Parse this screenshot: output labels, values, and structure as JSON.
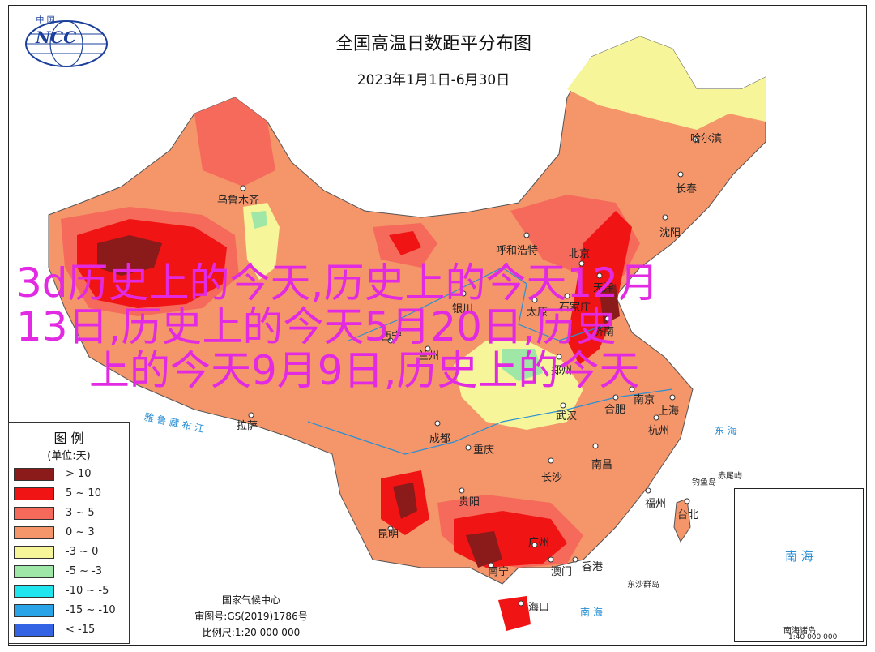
{
  "header": {
    "title": "全国高温日数距平分布图",
    "date_range": "2023年1月1日-6月30日"
  },
  "logo": {
    "top_text": "中 国",
    "text": "NCC"
  },
  "cities": [
    {
      "label": "乌鲁木齐"
    },
    {
      "label": "哈尔滨"
    },
    {
      "label": "长春"
    },
    {
      "label": "沈阳"
    },
    {
      "label": "呼和浩特"
    },
    {
      "label": "北京"
    },
    {
      "label": "天津"
    },
    {
      "label": "银川"
    },
    {
      "label": "太原"
    },
    {
      "label": "石家庄"
    },
    {
      "label": "济南"
    },
    {
      "label": "兰州"
    },
    {
      "label": "西宁"
    },
    {
      "label": "郑州"
    },
    {
      "label": "南京"
    },
    {
      "label": "合肥"
    },
    {
      "label": "上海"
    },
    {
      "label": "武汉"
    },
    {
      "label": "杭州"
    },
    {
      "label": "拉萨"
    },
    {
      "label": "成都"
    },
    {
      "label": "重庆"
    },
    {
      "label": "长沙"
    },
    {
      "label": "南昌"
    },
    {
      "label": "贵阳"
    },
    {
      "label": "福州"
    },
    {
      "label": "台北"
    },
    {
      "label": "昆明"
    },
    {
      "label": "广州"
    },
    {
      "label": "南宁"
    },
    {
      "label": "澳门"
    },
    {
      "label": "香港"
    },
    {
      "label": "海口"
    }
  ],
  "seas": {
    "east_sea": "东  海",
    "south_sea": "南    海",
    "diaoyu": "钓鱼岛",
    "chiwei": "赤尾屿",
    "dongsha": "东沙群岛",
    "river_yarlung": "雅  鲁  藏  布  江"
  },
  "legend": {
    "title": "图  例",
    "unit": "(单位:天)",
    "items": [
      {
        "label": "> 10",
        "color": "#8b1a1a"
      },
      {
        "label": "5 ~ 10",
        "color": "#f01414"
      },
      {
        "label": "3 ~ 5",
        "color": "#f56a5a"
      },
      {
        "label": "0 ~ 3",
        "color": "#f4956a"
      },
      {
        "label": "-3 ~ 0",
        "color": "#f6f59a"
      },
      {
        "label": "-5 ~ -3",
        "color": "#9fe7a6"
      },
      {
        "label": "-10 ~ -5",
        "color": "#20e5ef"
      },
      {
        "label": "-15 ~ -10",
        "color": "#2aa4e6"
      },
      {
        "label": "< -15",
        "color": "#3464e3"
      }
    ]
  },
  "inset": {
    "sea_label": "南  海",
    "islands_label": "南海诸岛",
    "scale": "1:40 000 000"
  },
  "credits": {
    "agency": "国家气候中心",
    "approval": "审图号:GS(2019)1786号",
    "scale": "比例尺:1:20 000 000"
  },
  "watermark": {
    "line1": "3d历史上的今天,历史上的今天12月",
    "line2": "13日,历史上的今天5月20日,历史",
    "line3": "上的今天9月9日,历史上的今天"
  }
}
